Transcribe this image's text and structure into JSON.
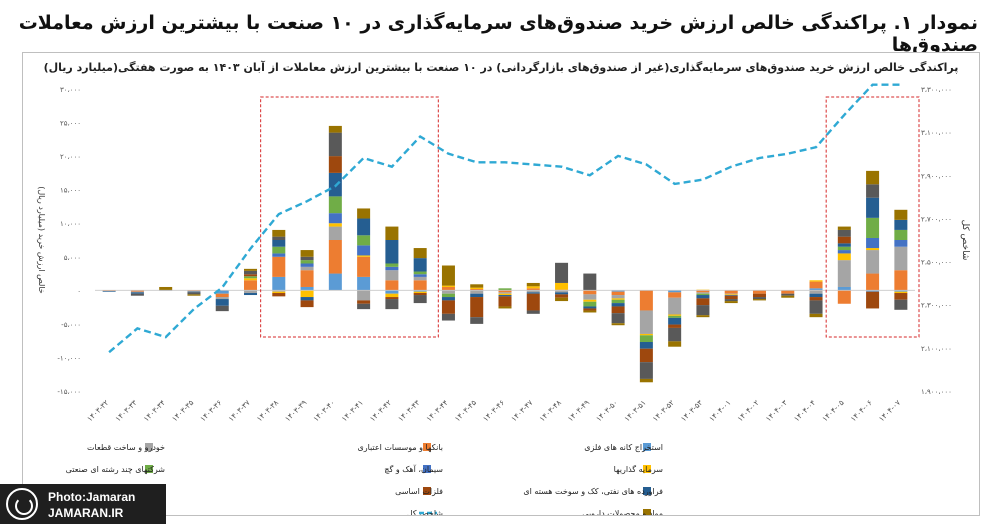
{
  "title": "نمودار ۱. پراکندگی خالص ارزش خرید صندوق‌های سرمایه‌گذاری در ۱۰ صنعت با بیشترین ارزش معاملات صندوق‌ها",
  "logo": {
    "line1": "Photo:Jamaran",
    "line2": "JAMARAN.IR"
  },
  "chart_data": {
    "type": "bar",
    "stacked": true,
    "title": "پراکندگی خالص ارزش خرید صندوق‌های سرمایه‌گذاری(غیر از صندوق‌های بازارگردانی) در ۱۰ صنعت با بیشترین ارزش معاملات از آبان ۱۴۰۳ به صورت هفتگی(میلیارد ریال)",
    "ylabel": "خالص ارزش خرید (میلیارد ریال)",
    "y2label": "شاخص کل",
    "ylim": [
      -15000,
      30000
    ],
    "y2lim": [
      1900000,
      3300000
    ],
    "yticks": [
      "۳۰،۰۰۰",
      "۲۵،۰۰۰",
      "۲۰،۰۰۰",
      "۱۵،۰۰۰",
      "۱۰،۰۰۰",
      "۵،۰۰۰",
      "۰",
      "-۵،۰۰۰",
      "-۱۰،۰۰۰",
      "-۱۵،۰۰۰"
    ],
    "y2ticks": [
      "۳،۳۰۰،۰۰۰",
      "۳،۱۰۰،۰۰۰",
      "۲،۹۰۰،۰۰۰",
      "۲،۷۰۰،۰۰۰",
      "۲،۵۰۰،۰۰۰",
      "۲،۳۰۰،۰۰۰",
      "۲،۱۰۰،۰۰۰",
      "۱،۹۰۰،۰۰۰"
    ],
    "categories": [
      "۱۴۰۳-۳۲",
      "۱۴۰۳-۳۳",
      "۱۴۰۳-۳۴",
      "۱۴۰۳-۳۵",
      "۱۴۰۳-۳۶",
      "۱۴۰۳-۳۷",
      "۱۴۰۳-۳۸",
      "۱۴۰۳-۳۹",
      "۱۴۰۳-۴۰",
      "۱۴۰۳-۴۱",
      "۱۴۰۳-۴۲",
      "۱۴۰۳-۴۳",
      "۱۴۰۳-۴۴",
      "۱۴۰۳-۴۵",
      "۱۴۰۳-۴۶",
      "۱۴۰۳-۴۷",
      "۱۴۰۳-۴۸",
      "۱۴۰۳-۴۹",
      "۱۴۰۳-۵۰",
      "۱۴۰۳-۵۱",
      "۱۴۰۳-۵۲",
      "۱۴۰۳-۵۳",
      "۱۴۰۴-۰۱",
      "۱۴۰۴-۰۲",
      "۱۴۰۴-۰۳",
      "۱۴۰۴-۰۴",
      "۱۴۰۴-۰۵",
      "۱۴۰۴-۰۶",
      "۱۴۰۴-۰۷"
    ],
    "highlight_ranges": [
      [
        6,
        11
      ],
      [
        26,
        28
      ]
    ],
    "series": [
      {
        "name": "استخراج کانه های فلزی",
        "color": "#5b9bd5",
        "values": [
          0,
          0,
          0,
          0,
          -500,
          0,
          2000,
          500,
          2500,
          2000,
          -500,
          -200,
          0,
          0,
          0,
          0,
          0,
          0,
          -200,
          0,
          -300,
          0,
          0,
          0,
          0,
          300,
          500,
          -200,
          -200
        ]
      },
      {
        "name": "بانکها و موسسات اعتباری",
        "color": "#ed7d31",
        "values": [
          -100,
          -200,
          0,
          -100,
          -500,
          1500,
          3000,
          2500,
          5000,
          3000,
          1500,
          1500,
          500,
          200,
          -300,
          300,
          100,
          -600,
          -500,
          -3000,
          -800,
          -300,
          -500,
          -500,
          -500,
          1000,
          -2000,
          2500,
          3000
        ]
      },
      {
        "name": "خودرو و ساخت قطعات",
        "color": "#a5a5a5",
        "values": [
          0,
          -100,
          -100,
          -100,
          -300,
          -400,
          -200,
          500,
          2000,
          -1500,
          1500,
          500,
          -500,
          -500,
          -200,
          -300,
          -300,
          -800,
          -500,
          -3500,
          -2500,
          -200,
          -100,
          0,
          0,
          -500,
          4000,
          3500,
          3500
        ]
      },
      {
        "name": "سرمایه گذاریها",
        "color": "#ffc000",
        "values": [
          0,
          0,
          0,
          0,
          0,
          300,
          -200,
          -1000,
          500,
          200,
          -500,
          -200,
          200,
          200,
          -200,
          300,
          1000,
          -300,
          -200,
          -200,
          -200,
          100,
          -100,
          0,
          0,
          200,
          1000,
          300,
          -200
        ]
      },
      {
        "name": "سیمان، آهک و گچ",
        "color": "#4472c4",
        "values": [
          0,
          0,
          0,
          0,
          0,
          0,
          500,
          500,
          1500,
          1500,
          500,
          400,
          0,
          0,
          0,
          0,
          0,
          0,
          0,
          0,
          0,
          0,
          0,
          0,
          0,
          0,
          500,
          1500,
          1000
        ]
      },
      {
        "name": "شرکتهای چند رشته ای صنعتی",
        "color": "#70ad47",
        "values": [
          0,
          0,
          0,
          0,
          0,
          300,
          1000,
          500,
          2500,
          1500,
          500,
          400,
          -500,
          0,
          300,
          0,
          0,
          -700,
          -500,
          -1000,
          -300,
          -200,
          0,
          0,
          0,
          0,
          500,
          3000,
          1500
        ]
      },
      {
        "name": "فراورده های نفتی، کک و سوخت هسته ای",
        "color": "#255e91",
        "values": [
          -100,
          -200,
          0,
          -100,
          -1000,
          -300,
          1000,
          -500,
          3500,
          2500,
          3500,
          2000,
          -500,
          -500,
          -200,
          -200,
          -300,
          -300,
          -500,
          -1000,
          -1000,
          -500,
          -100,
          0,
          0,
          -500,
          500,
          3000,
          1500
        ]
      },
      {
        "name": "فلزات اساسی",
        "color": "#9e480e",
        "values": [
          0,
          0,
          0,
          0,
          0,
          300,
          -500,
          -1000,
          2500,
          -500,
          -300,
          -300,
          -2000,
          -3000,
          -1500,
          -2500,
          -500,
          -300,
          -1000,
          -2000,
          -500,
          -1000,
          -500,
          -500,
          0,
          -500,
          1000,
          -2500,
          -1000
        ]
      },
      {
        "name": "محصولات شیمیایی",
        "color": "#595959",
        "values": [
          0,
          -300,
          0,
          -300,
          -800,
          500,
          500,
          500,
          3500,
          -800,
          -1500,
          -1200,
          -1000,
          -1000,
          0,
          -500,
          3000,
          2500,
          -1500,
          -2500,
          -2000,
          -1500,
          -300,
          -300,
          -300,
          -2000,
          1000,
          2000,
          -1500
        ]
      },
      {
        "name": "مواد و محصولات دارویی",
        "color": "#997300",
        "values": [
          0,
          0,
          500,
          -200,
          0,
          300,
          1000,
          1000,
          1000,
          1500,
          2000,
          1500,
          3000,
          500,
          -300,
          500,
          -500,
          -300,
          -300,
          -500,
          -800,
          -300,
          -300,
          -200,
          -300,
          -500,
          500,
          2000,
          1500
        ]
      }
    ],
    "line": {
      "name": "شاخص کل",
      "color": "#2fa9d4",
      "values": [
        2080000,
        2190000,
        2150000,
        2280000,
        2380000,
        2560000,
        2720000,
        2780000,
        2850000,
        2980000,
        2940000,
        3080000,
        3000000,
        2960000,
        2960000,
        2950000,
        2940000,
        2900000,
        2990000,
        2950000,
        2860000,
        2880000,
        2940000,
        2980000,
        3000000,
        3030000,
        3180000,
        3320000,
        3320000
      ]
    }
  }
}
